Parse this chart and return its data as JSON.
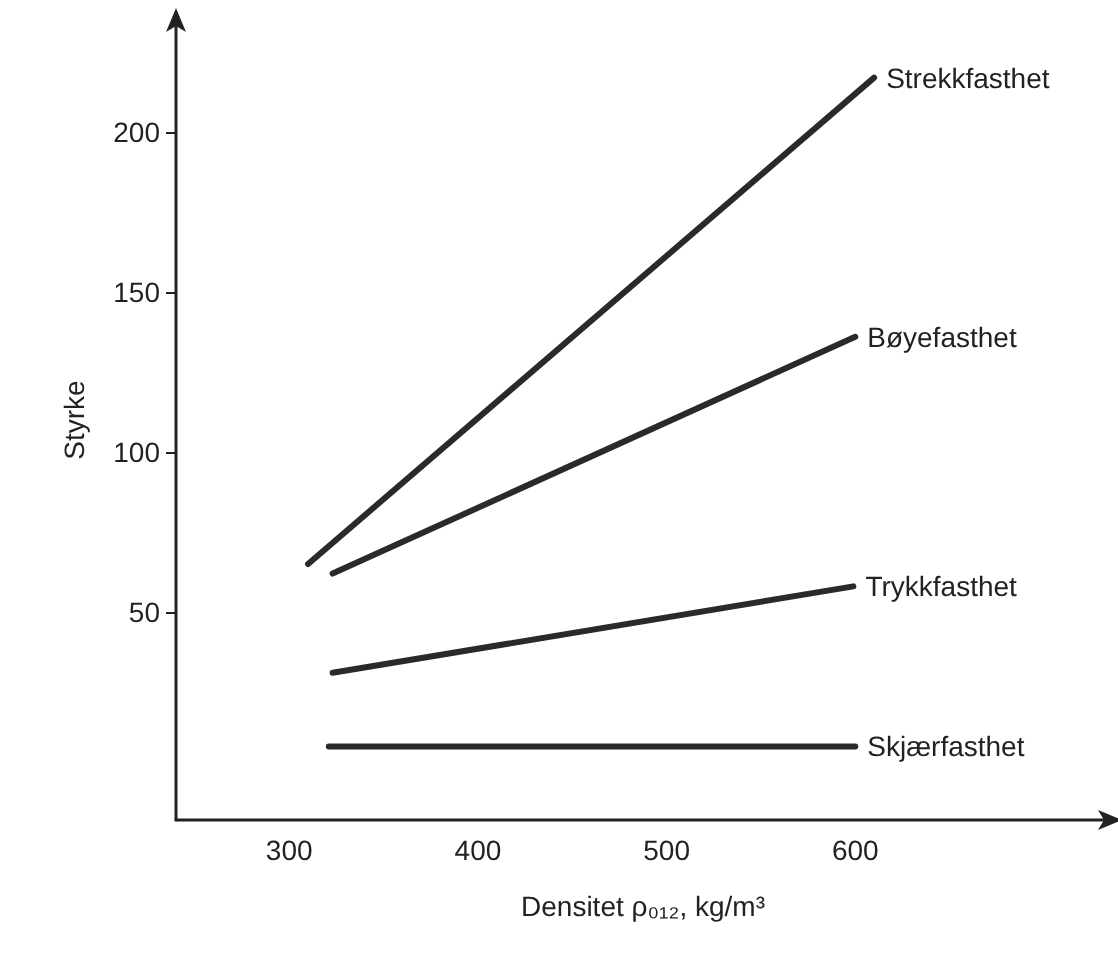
{
  "chart_data": {
    "type": "line",
    "xlabel": "Densitet ρ₀₁₂, kg/m³",
    "ylabel": "Styrke",
    "xlim": [
      240,
      735
    ],
    "xticks": [
      300,
      400,
      500,
      600
    ],
    "ylim": [
      -15,
      235
    ],
    "yticks": [
      50,
      100,
      150,
      200
    ],
    "grid": false,
    "legend": false,
    "marker": "none",
    "line_style": "solid",
    "series": [
      {
        "name": "Strekkfasthet",
        "color": "#2a2a2a",
        "x": [
          310,
          610
        ],
        "values": [
          65,
          217
        ]
      },
      {
        "name": "Bøyefasthet",
        "color": "#2a2a2a",
        "x": [
          323,
          600
        ],
        "values": [
          62,
          136
        ]
      },
      {
        "name": "Trykkfasthet",
        "color": "#2a2a2a",
        "x": [
          323,
          599
        ],
        "values": [
          31,
          58
        ]
      },
      {
        "name": "Skjærfasthet",
        "color": "#2a2a2a",
        "x": [
          321,
          600
        ],
        "values": [
          8,
          8
        ]
      }
    ]
  }
}
